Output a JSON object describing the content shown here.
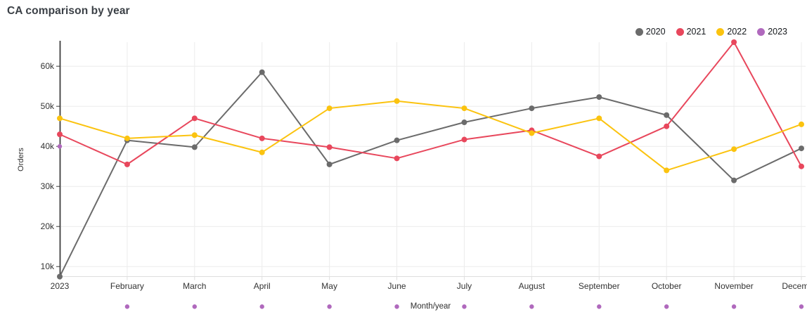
{
  "title": "CA comparison by year",
  "chart_data": {
    "type": "line",
    "title": "CA comparison by year",
    "xlabel": "Month/year",
    "ylabel": "Orders",
    "x_categories": [
      "2023",
      "February",
      "March",
      "April",
      "May",
      "June",
      "July",
      "August",
      "September",
      "October",
      "November",
      "December"
    ],
    "y_ticks": [
      {
        "label": "10k",
        "value": 10000
      },
      {
        "label": "20k",
        "value": 20000
      },
      {
        "label": "30k",
        "value": 30000
      },
      {
        "label": "40k",
        "value": 40000
      },
      {
        "label": "50k",
        "value": 50000
      },
      {
        "label": "60k",
        "value": 60000
      }
    ],
    "ylim": [
      7500,
      66000
    ],
    "grid": true,
    "legend_position": "top-right",
    "series": [
      {
        "name": "2020",
        "color": "#6b6b6b",
        "marker": "circle",
        "markers_only": false,
        "values": [
          7500,
          41500,
          39800,
          58500,
          35500,
          41500,
          46000,
          49500,
          52300,
          47800,
          31500,
          39500
        ]
      },
      {
        "name": "2021",
        "color": "#e8475c",
        "marker": "circle",
        "markers_only": false,
        "values": [
          43000,
          35500,
          47000,
          42000,
          39800,
          37000,
          41700,
          44000,
          37500,
          45000,
          66000,
          35000
        ]
      },
      {
        "name": "2022",
        "color": "#fbc30f",
        "marker": "circle",
        "markers_only": false,
        "values": [
          47000,
          42000,
          42800,
          38500,
          49500,
          51300,
          49500,
          43300,
          47000,
          34000,
          39300,
          45500
        ]
      },
      {
        "name": "2023",
        "color": "#b069bd",
        "marker": "circle",
        "markers_only": true,
        "values": [
          40000,
          0,
          0,
          0,
          0,
          0,
          0,
          0,
          0,
          0,
          0,
          0
        ]
      }
    ]
  },
  "colors": {
    "grid_line": "#ececec",
    "x_axis_line": "#dedede",
    "y_axis_line": "#3f3f3f",
    "tick_text": "#333333",
    "axis_title_text": "#2f2f2f"
  }
}
